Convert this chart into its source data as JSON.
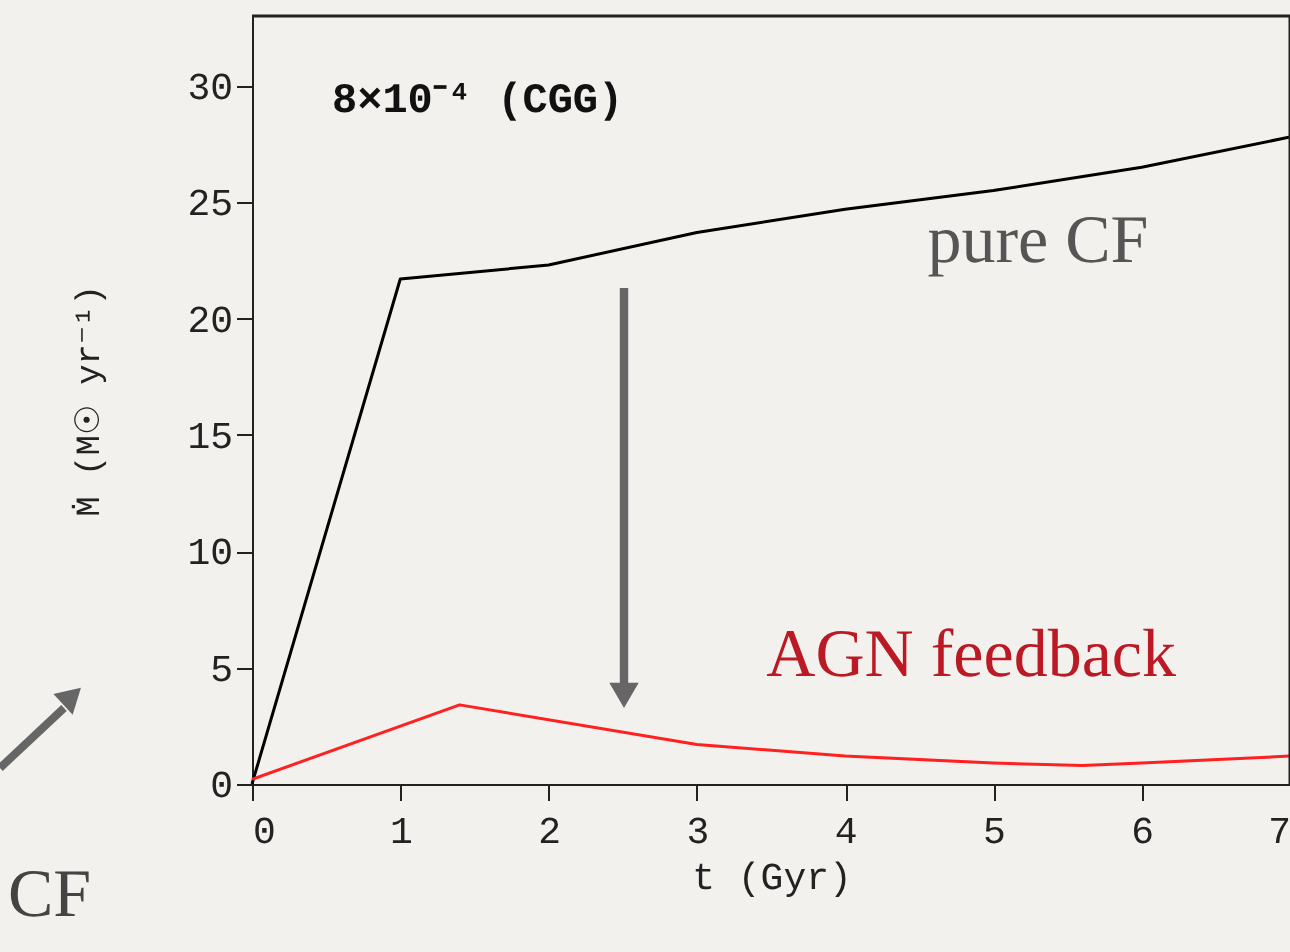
{
  "chart_data": {
    "type": "line",
    "xlabel": "t (Gyr)",
    "ylabel": "Ṁ (M☉ yr⁻¹)",
    "xlim": [
      0,
      7
    ],
    "xticks": [
      0,
      1,
      2,
      3,
      4,
      5,
      6,
      7
    ],
    "ylim": [
      0,
      33
    ],
    "yticks": [
      0,
      5,
      10,
      15,
      20,
      25,
      30
    ],
    "grid": false,
    "marker": "none",
    "line_style": "solid",
    "annotations": [
      "8×10⁻⁴ (CGG)",
      "CF"
    ],
    "series": [
      {
        "name": "pure CF",
        "color": "#000000",
        "x": [
          0,
          1,
          2,
          3,
          4,
          5,
          6,
          7
        ],
        "values": [
          0,
          21.7,
          22.3,
          23.7,
          24.7,
          25.5,
          26.5,
          27.8
        ]
      },
      {
        "name": "AGN feedback",
        "color": "#ff2020",
        "x": [
          0,
          1.4,
          3,
          4,
          5,
          5.6,
          6,
          7
        ],
        "values": [
          0.2,
          3.4,
          1.7,
          1.2,
          0.9,
          0.8,
          0.9,
          1.2
        ]
      }
    ]
  }
}
